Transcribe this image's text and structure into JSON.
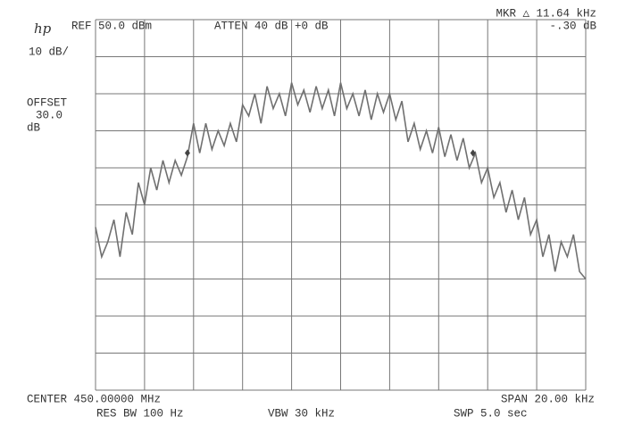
{
  "logo": "hp",
  "header": {
    "ref": "REF 50.0 dBm",
    "atten": "ATTEN 40 dB +0 dB",
    "marker": "MKR △ 11.64 kHz",
    "marker_level": "-.30 dB"
  },
  "left_panel": {
    "scale": "10 dB/",
    "offset_label": "OFFSET",
    "offset_value": "30.0",
    "offset_unit": "dB"
  },
  "footer": {
    "center": "CENTER 450.00000 MHz",
    "span": "SPAN 20.00 kHz",
    "rbw": "RES BW 100 Hz",
    "vbw": "VBW 30 kHz",
    "sweep": "SWP 5.0  sec"
  },
  "chart_data": {
    "type": "line",
    "color": "#707070",
    "grid": true,
    "xlim": [
      -10,
      10
    ],
    "xticks": [
      -10,
      -8,
      -6,
      -4,
      -2,
      0,
      2,
      4,
      6,
      8,
      10
    ],
    "ylim": [
      -50,
      50
    ],
    "yticks": [
      -50,
      -40,
      -30,
      -20,
      -10,
      0,
      10,
      20,
      30,
      40,
      50
    ],
    "x": [
      -10,
      -9.75,
      -9.5,
      -9.25,
      -9,
      -8.75,
      -8.5,
      -8.25,
      -8,
      -7.75,
      -7.5,
      -7.25,
      -7,
      -6.75,
      -6.5,
      -6.25,
      -6,
      -5.75,
      -5.5,
      -5.25,
      -5,
      -4.75,
      -4.5,
      -4.25,
      -4,
      -3.75,
      -3.5,
      -3.25,
      -3,
      -2.75,
      -2.5,
      -2.25,
      -2,
      -1.75,
      -1.5,
      -1.25,
      -1,
      -0.75,
      -0.5,
      -0.25,
      0,
      0.25,
      0.5,
      0.75,
      1,
      1.25,
      1.5,
      1.75,
      2,
      2.25,
      2.5,
      2.75,
      3,
      3.25,
      3.5,
      3.75,
      4,
      4.25,
      4.5,
      4.75,
      5,
      5.25,
      5.5,
      5.75,
      6,
      6.25,
      6.5,
      6.75,
      7,
      7.25,
      7.5,
      7.75,
      8,
      8.25,
      8.5,
      8.75,
      9,
      9.25,
      9.5,
      9.75,
      10
    ],
    "values": [
      -6,
      -14,
      -10,
      -4,
      -14,
      -2,
      -8,
      6,
      0,
      10,
      4,
      12,
      6,
      12,
      8,
      13,
      22,
      14,
      22,
      15,
      20,
      16,
      22,
      17,
      27,
      24,
      30,
      22,
      32,
      26,
      30,
      24,
      33,
      27,
      31,
      25,
      32,
      26,
      31,
      24,
      33,
      26,
      30,
      24,
      31,
      23,
      30,
      25,
      30,
      23,
      28,
      17,
      22,
      15,
      20,
      14,
      21,
      13,
      19,
      12,
      18,
      10,
      14,
      6,
      10,
      2,
      6,
      -2,
      4,
      -4,
      2,
      -8,
      -4,
      -14,
      -8,
      -18,
      -10,
      -14,
      -8,
      -18,
      -20
    ],
    "markers": {
      "x": [
        -6.25,
        5.4
      ],
      "values": [
        14,
        14
      ]
    }
  }
}
